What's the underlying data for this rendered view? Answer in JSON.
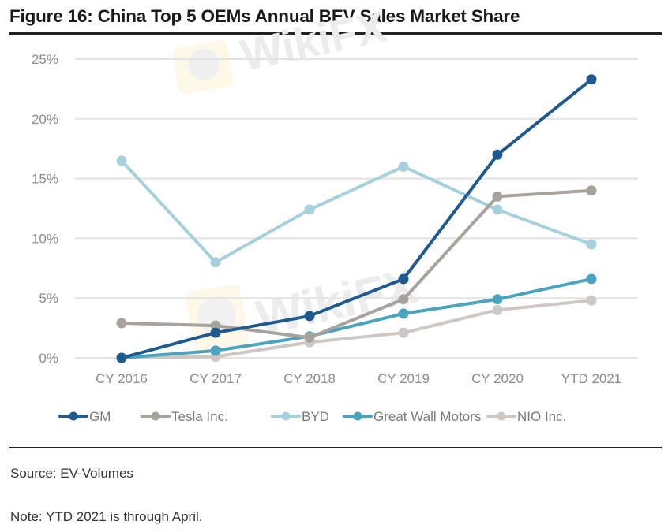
{
  "figure": {
    "title": "Figure 16: China Top 5 OEMs Annual BEV Sales Market Share",
    "source": "Source: EV-Volumes",
    "note": "Note: YTD 2021 is through April.",
    "watermark": "WikiFX"
  },
  "chart_data": {
    "type": "line",
    "title": "Figure 16: China Top 5 OEMs Annual BEV Sales Market Share",
    "xlabel": "",
    "ylabel": "",
    "categories": [
      "CY 2016",
      "CY 2017",
      "CY 2018",
      "CY 2019",
      "CY 2020",
      "YTD 2021"
    ],
    "ylim": [
      0,
      25
    ],
    "yticks": [
      0,
      5,
      10,
      15,
      20,
      25
    ],
    "ytick_labels": [
      "0%",
      "5%",
      "10%",
      "15%",
      "20%",
      "25%"
    ],
    "grid": true,
    "legend_position": "bottom",
    "series": [
      {
        "name": "GM",
        "color": "#1f5a8e",
        "values": [
          0.0,
          2.1,
          3.5,
          6.6,
          17.0,
          23.3
        ]
      },
      {
        "name": "Tesla Inc.",
        "color": "#a8a29c",
        "values": [
          2.9,
          2.7,
          1.7,
          4.9,
          13.5,
          14.0
        ]
      },
      {
        "name": "BYD",
        "color": "#a6d0dc",
        "values": [
          16.5,
          8.0,
          12.4,
          16.0,
          12.4,
          9.5
        ]
      },
      {
        "name": "Great Wall Motors",
        "color": "#4ba3bd",
        "values": [
          0.0,
          0.6,
          1.8,
          3.7,
          4.9,
          6.6
        ]
      },
      {
        "name": "NIO Inc.",
        "color": "#cdc8c4",
        "values": [
          0.0,
          0.1,
          1.3,
          2.1,
          4.0,
          4.8
        ]
      }
    ]
  }
}
